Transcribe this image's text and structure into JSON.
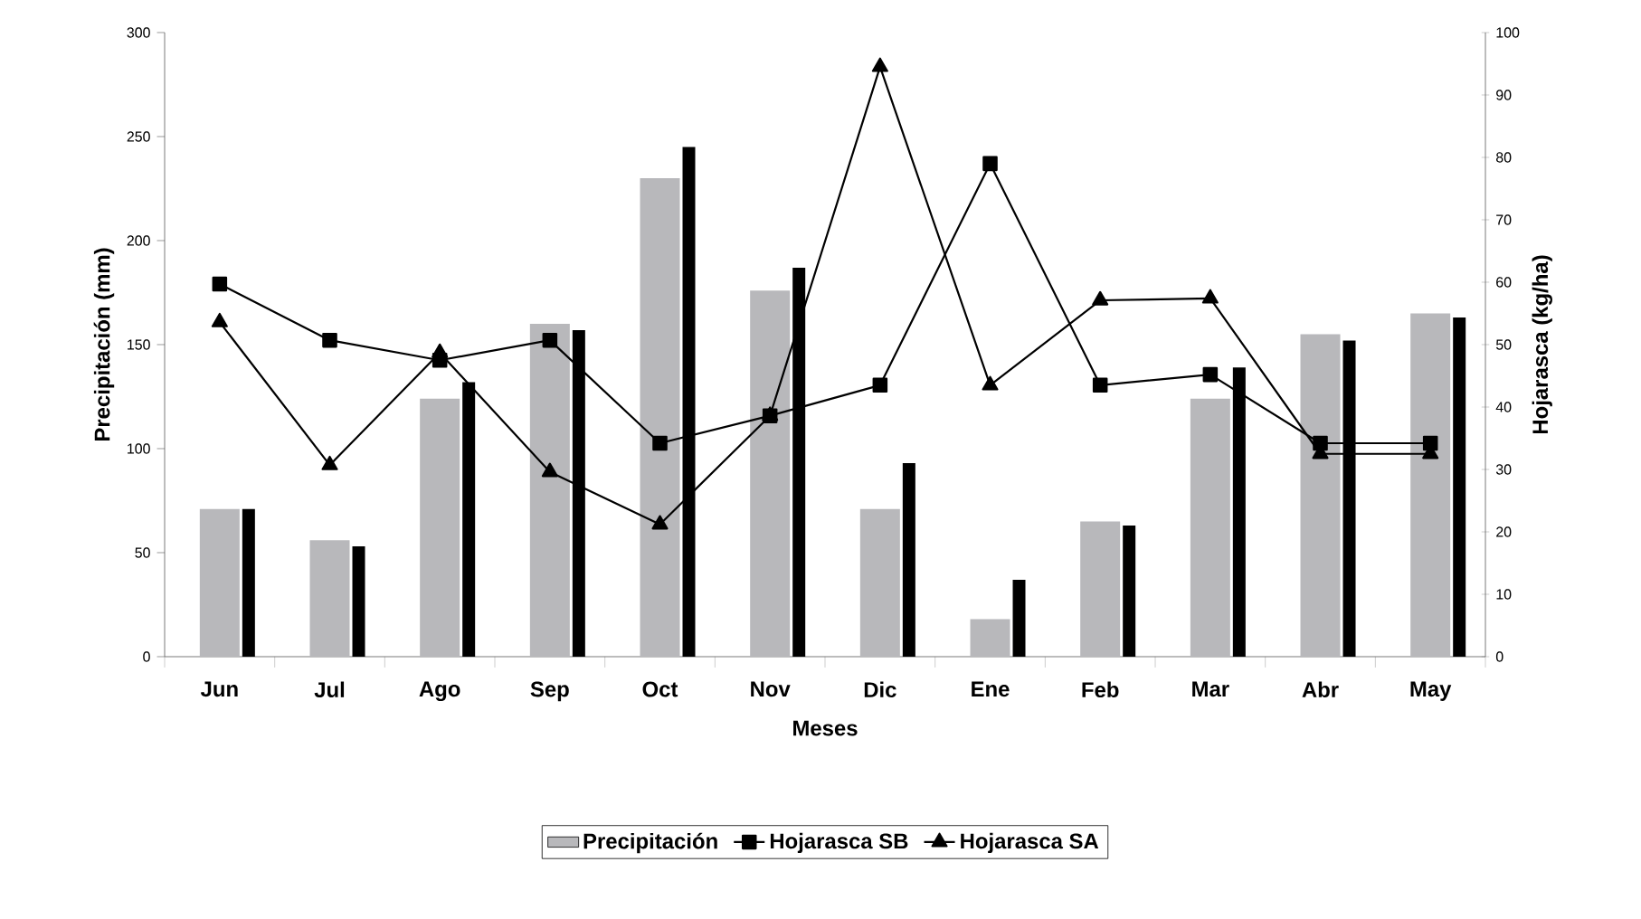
{
  "chart_data": {
    "type": "bar",
    "xlabel": "Meses",
    "ylabel": "Precipitación (mm)",
    "y2label": "Hojarasca (kg/ha)",
    "categories": [
      "Jun",
      "Jul",
      "Ago",
      "Sep",
      "Oct",
      "Nov",
      "Dic",
      "Ene",
      "Feb",
      "Mar",
      "Abr",
      "May"
    ],
    "series": [
      {
        "name": "Precipitación",
        "color": "#b8b8bb",
        "values": [
          71,
          56,
          124,
          160,
          230,
          176,
          71,
          18,
          65,
          124,
          155,
          165
        ]
      },
      {
        "color": "#000000",
        "values": [
          71,
          53,
          132,
          157,
          245,
          187,
          93,
          37,
          63,
          139,
          152,
          163
        ]
      },
      {
        "name": "Hojarasca SB",
        "type": "line",
        "axis": "y2",
        "marker": "square",
        "color": "#000000",
        "values": [
          59.7,
          50.7,
          47.5,
          50.7,
          34.2,
          38.6,
          43.5,
          79,
          43.5,
          45.2,
          34.2,
          34.2
        ]
      },
      {
        "name": "Hojarasca SA",
        "type": "line",
        "axis": "y2",
        "marker": "triangle",
        "color": "#000000",
        "values": [
          53.6,
          30.7,
          48.7,
          29.6,
          21.2,
          38.6,
          94.5,
          43.5,
          57.1,
          57.4,
          32.5,
          32.5
        ]
      }
    ],
    "ylim": [
      0,
      300
    ],
    "yticks": [
      0,
      50,
      100,
      150,
      200,
      250,
      300
    ],
    "y2lim": [
      0,
      100
    ],
    "y2ticks": [
      0,
      10,
      20,
      30,
      40,
      50,
      60,
      70,
      80,
      90,
      100
    ],
    "legend": "bottom"
  }
}
